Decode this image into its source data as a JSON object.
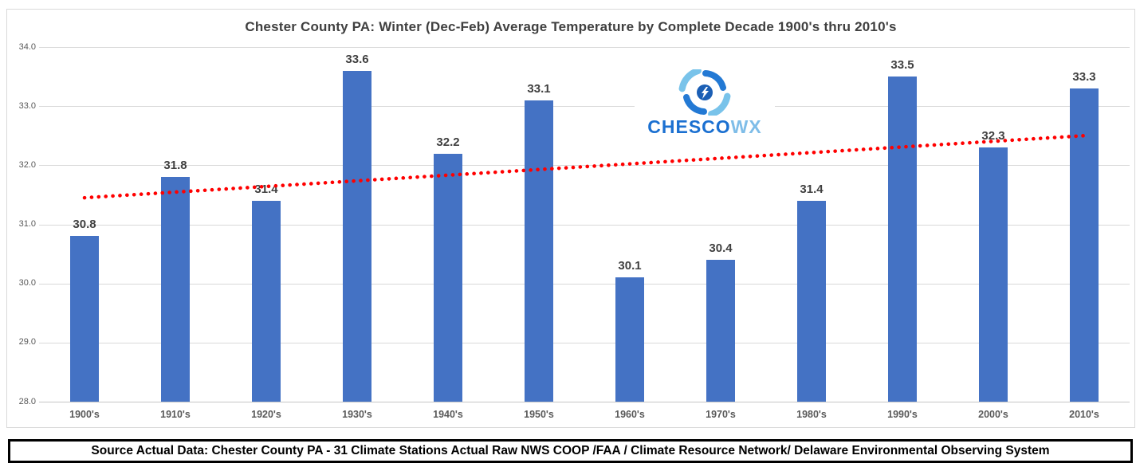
{
  "title": "Chester County PA: Winter (Dec-Feb) Average Temperature by Complete Decade 1900's thru 2010's",
  "logo": {
    "icon": "hurricane-swirl-icon",
    "brand_primary": "CHESCO",
    "brand_secondary": "WX",
    "primary_color": "#1b70d1",
    "secondary_color": "#7fbde8",
    "icon_dark_blue": "#2379d4",
    "icon_light_blue": "#79c3ea",
    "icon_center_blue": "#1b5fb5"
  },
  "source_bar": {
    "text": "Source Actual Data: Chester County PA - 31 Climate Stations Actual Raw NWS COOP /FAA / Climate Resource Network/ Delaware Environmental Observing System"
  },
  "chart_data": {
    "type": "bar",
    "title": "Chester County PA: Winter (Dec-Feb) Average Temperature by Complete Decade 1900's thru 2010's",
    "categories": [
      "1900's",
      "1910's",
      "1920's",
      "1930's",
      "1940's",
      "1950's",
      "1960's",
      "1970's",
      "1980's",
      "1990's",
      "2000's",
      "2010's"
    ],
    "values": [
      30.8,
      31.8,
      31.4,
      33.6,
      32.2,
      33.1,
      30.1,
      30.4,
      31.4,
      33.5,
      32.3,
      33.3
    ],
    "xlabel": "",
    "ylabel": "",
    "ylim": [
      28.0,
      34.0
    ],
    "ytick_step": 1.0,
    "ytick_labels": [
      "28.0",
      "29.0",
      "30.0",
      "31.0",
      "32.0",
      "33.0",
      "34.0"
    ],
    "grid": true,
    "legend": "none",
    "bar_color": "#4472c4",
    "grid_color": "#d9d9d9",
    "label_color": "#404040",
    "tick_color": "#595959",
    "trendline": {
      "style": "dotted",
      "color": "#ff0000",
      "start_value": 31.45,
      "end_value": 32.5
    }
  }
}
